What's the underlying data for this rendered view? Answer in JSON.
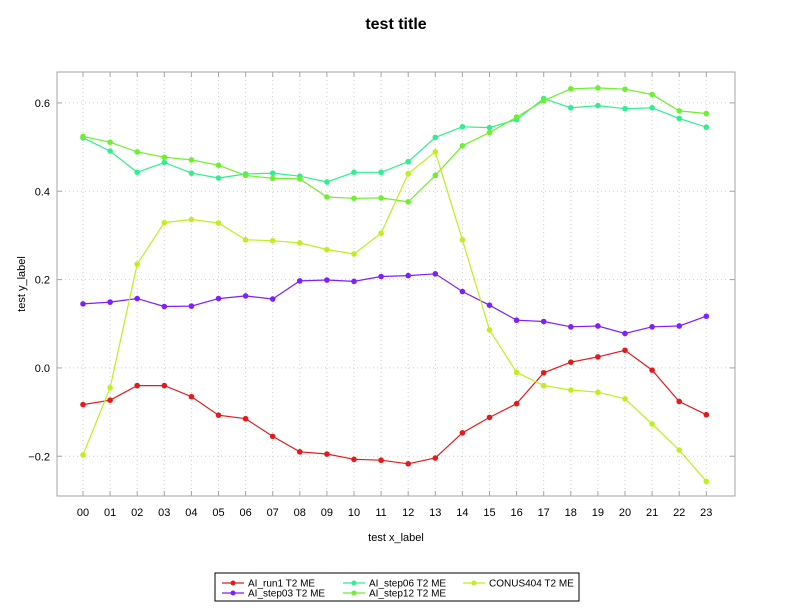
{
  "chart_data": {
    "type": "line",
    "title": "test title",
    "xlabel": "test x_label",
    "ylabel": "test y_label",
    "categories": [
      "00",
      "01",
      "02",
      "03",
      "04",
      "05",
      "06",
      "07",
      "08",
      "09",
      "10",
      "11",
      "12",
      "13",
      "14",
      "15",
      "16",
      "17",
      "18",
      "19",
      "20",
      "21",
      "22",
      "23"
    ],
    "ylim": [
      -0.29,
      0.67
    ],
    "yticks": [
      -0.2,
      0.0,
      0.2,
      0.4,
      0.6
    ],
    "ytick_labels": [
      "−0.2",
      "0.0",
      "0.2",
      "0.4",
      "0.6"
    ],
    "grid": true,
    "legend_position": "bottom",
    "series": [
      {
        "name": "AI_run1 T2 ME",
        "color": "#e41a1c",
        "values": [
          -0.083,
          -0.073,
          -0.04,
          -0.04,
          -0.065,
          -0.107,
          -0.115,
          -0.155,
          -0.19,
          -0.195,
          -0.207,
          -0.209,
          -0.217,
          -0.204,
          -0.147,
          -0.112,
          -0.081,
          -0.011,
          0.013,
          0.025,
          0.04,
          -0.005,
          -0.076,
          -0.106
        ]
      },
      {
        "name": "AI_step03 T2 ME",
        "color": "#7f1fff",
        "values": [
          0.145,
          0.149,
          0.157,
          0.139,
          0.14,
          0.157,
          0.163,
          0.156,
          0.197,
          0.199,
          0.196,
          0.207,
          0.209,
          0.213,
          0.173,
          0.142,
          0.108,
          0.105,
          0.093,
          0.095,
          0.078,
          0.093,
          0.095,
          0.117
        ]
      },
      {
        "name": "AI_step06 T2 ME",
        "color": "#2fef8f",
        "values": [
          0.521,
          0.491,
          0.443,
          0.465,
          0.441,
          0.43,
          0.439,
          0.441,
          0.434,
          0.421,
          0.443,
          0.443,
          0.467,
          0.522,
          0.546,
          0.544,
          0.562,
          0.61,
          0.589,
          0.594,
          0.587,
          0.589,
          0.565,
          0.545
        ]
      },
      {
        "name": "AI_step12 T2 ME",
        "color": "#6fef2f",
        "values": [
          0.524,
          0.511,
          0.489,
          0.477,
          0.471,
          0.459,
          0.436,
          0.429,
          0.428,
          0.387,
          0.384,
          0.385,
          0.376,
          0.436,
          0.503,
          0.533,
          0.568,
          0.605,
          0.632,
          0.634,
          0.631,
          0.619,
          0.582,
          0.576
        ]
      },
      {
        "name": "CONUS404 T2 ME",
        "color": "#bfef1f",
        "values": [
          -0.197,
          -0.045,
          0.235,
          0.329,
          0.336,
          0.328,
          0.29,
          0.288,
          0.283,
          0.268,
          0.258,
          0.305,
          0.44,
          0.489,
          0.29,
          0.086,
          -0.01,
          -0.04,
          -0.05,
          -0.055,
          -0.07,
          -0.127,
          -0.186,
          -0.257
        ]
      }
    ]
  }
}
